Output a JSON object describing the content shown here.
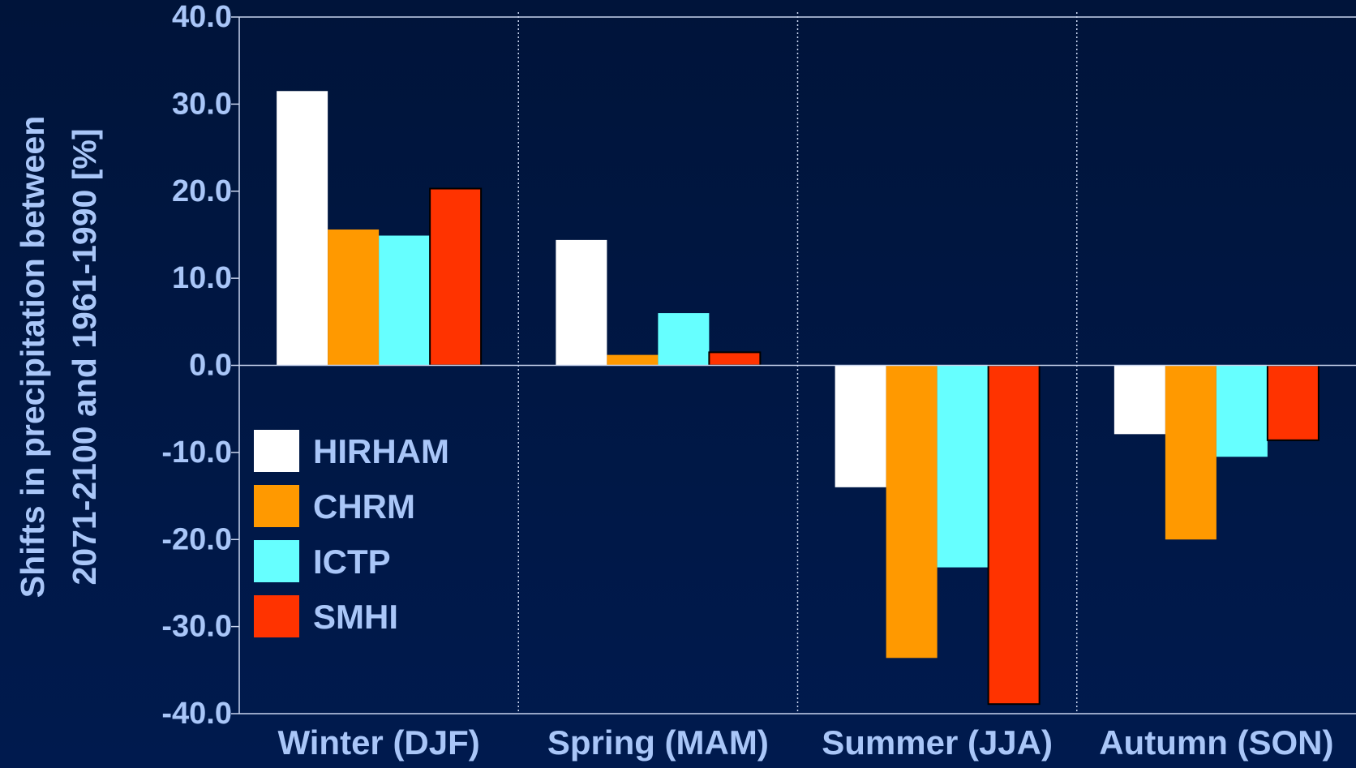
{
  "chart_data": {
    "type": "bar",
    "ylabel": [
      "Shifts in precipitation between",
      "2071-2100 and 1961-1990 [%]"
    ],
    "categories": [
      "Winter (DJF)",
      "Spring (MAM)",
      "Summer (JJA)",
      "Autumn (SON)"
    ],
    "series": [
      {
        "name": "HIRHAM",
        "color": "#ffffff",
        "values": [
          31.5,
          14.4,
          -14.0,
          -7.9
        ]
      },
      {
        "name": "CHRM",
        "color": "#ff9900",
        "values": [
          15.6,
          1.2,
          -33.6,
          -20.0
        ]
      },
      {
        "name": "ICTP",
        "color": "#66ffff",
        "values": [
          14.9,
          6.0,
          -23.2,
          -10.5
        ]
      },
      {
        "name": "SMHI",
        "color": "#ff3300",
        "values": [
          20.3,
          1.5,
          -38.9,
          -8.6
        ]
      }
    ],
    "ylim": [
      -40,
      40
    ],
    "yticks": [
      {
        "value": -40,
        "label": "-40.0"
      },
      {
        "value": -30,
        "label": "-30.0"
      },
      {
        "value": -20,
        "label": "-20.0"
      },
      {
        "value": -10,
        "label": "-10.0"
      },
      {
        "value": 0,
        "label": "0.0"
      },
      {
        "value": 10,
        "label": "10.0"
      },
      {
        "value": 20,
        "label": "20.0"
      },
      {
        "value": 30,
        "label": "30.0"
      },
      {
        "value": 40,
        "label": "40.0"
      }
    ],
    "legend": "lower left"
  }
}
